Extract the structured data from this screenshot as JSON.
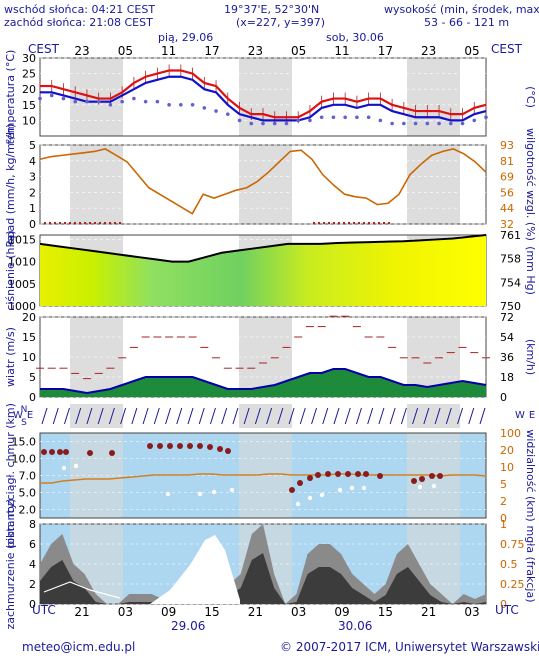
{
  "header": {
    "sunrise": "wschód słońca: 04:21 CEST",
    "sunset": "zachód słońca: 21:08 CEST",
    "coords": "19°37'E, 52°30'N",
    "grid": "(x=227, y=397)",
    "elevation_title": "wysokość (min, środek, max)",
    "elevation_values": "53 - 66 - 121 m",
    "day1": "pią, 29.06",
    "day2": "sob, 30.06",
    "tz_left": "CEST",
    "tz_right": "CEST",
    "top_hours": [
      "23",
      "05",
      "11",
      "17",
      "23",
      "05",
      "11",
      "17",
      "23",
      "05"
    ]
  },
  "footer": {
    "utc_left": "UTC",
    "utc_right": "UTC",
    "bottom_hours": [
      "21",
      "03",
      "09",
      "15",
      "21",
      "03",
      "09",
      "15",
      "21",
      "03"
    ],
    "date1": "29.06",
    "date2": "30.06",
    "email": "meteo@icm.edu.pl",
    "copyright": "© 2007-2017 ICM, Uniwersytet Warszawski"
  },
  "colors": {
    "label": "#1a1a9a",
    "orange": "#cc6600",
    "red": "#dd1111",
    "blue": "#1111cc",
    "panel": "#add6f0",
    "ice": "#f4f4ff"
  },
  "chart_data": [
    {
      "type": "line",
      "panel": "temperature",
      "left_label": "temperatura (°C)",
      "right_label": "(°C)",
      "ylim": [
        5,
        30
      ],
      "yticks": [
        10,
        15,
        20,
        25,
        30
      ],
      "series": [
        {
          "values": [
            21,
            21,
            20,
            19,
            18,
            17,
            17,
            19,
            22,
            24,
            25,
            26,
            26,
            25,
            22,
            21,
            17,
            14,
            12,
            12,
            11,
            11,
            11,
            13,
            16,
            17,
            17,
            16,
            17,
            17,
            15,
            14,
            13,
            13,
            13,
            12,
            12,
            14,
            15
          ]
        },
        {
          "values": [
            19,
            19,
            18,
            17,
            16,
            16,
            16,
            18,
            20,
            22,
            23,
            24,
            24,
            23,
            20,
            19,
            15,
            12,
            11,
            10,
            10,
            10,
            10,
            11,
            14,
            15,
            15,
            14,
            15,
            15,
            13,
            12,
            11,
            11,
            11,
            10,
            10,
            12,
            13
          ]
        },
        {
          "values": [
            17,
            18,
            17,
            16,
            16,
            16,
            15,
            16,
            17,
            16,
            16,
            15,
            15,
            15,
            14,
            13,
            12,
            10,
            9,
            9,
            9,
            9,
            10,
            10,
            11,
            11,
            11,
            11,
            11,
            10,
            9,
            9,
            9,
            9,
            9,
            9,
            9,
            10,
            11
          ]
        }
      ]
    },
    {
      "type": "line",
      "panel": "precipitation",
      "left_label": "opad (mm/h, kg/m²/h)",
      "right_label": "wilgotność wzgl. (%)",
      "right_units": "(%)",
      "ylim": [
        0,
        5
      ],
      "yticks": [
        0,
        1,
        2,
        3,
        4,
        5
      ],
      "right_ticks": [
        "32",
        "44",
        "56",
        "69",
        "81",
        "93"
      ],
      "humidity": [
        82,
        84,
        85,
        86,
        87,
        88,
        90,
        85,
        80,
        70,
        60,
        55,
        50,
        45,
        40,
        55,
        52,
        55,
        58,
        60,
        65,
        72,
        80,
        88,
        89,
        82,
        70,
        62,
        55,
        53,
        52,
        47,
        48,
        55,
        70,
        78,
        85,
        88,
        90,
        86,
        80,
        72
      ]
    },
    {
      "type": "area",
      "panel": "pressure",
      "left_label": "ciśnienie (hPa)",
      "right_label": "(mm Hg)",
      "ylim": [
        1000,
        1016
      ],
      "yticks": [
        1000,
        1005,
        1010,
        1015
      ],
      "right_ticks": [
        "750",
        "754",
        "758",
        "761"
      ],
      "values": [
        1014,
        1013.5,
        1013,
        1012.5,
        1012,
        1011.5,
        1011,
        1010.5,
        1010,
        1010,
        1011,
        1012,
        1012.5,
        1013,
        1013.5,
        1014,
        1014,
        1014,
        1014.2,
        1014.3,
        1014.4,
        1014.5,
        1014.6,
        1014.8,
        1015,
        1015.2,
        1015.6,
        1016
      ]
    },
    {
      "type": "bar",
      "panel": "wind",
      "left_label": "wiatr (m/s)",
      "right_label": "(km/h)",
      "ylim": [
        0,
        20
      ],
      "yticks": [
        0,
        5,
        10,
        15,
        20
      ],
      "right_ticks": [
        "0",
        "18",
        "36",
        "54",
        "72"
      ],
      "speed": [
        2,
        2,
        2,
        1.5,
        1,
        1.5,
        2,
        3,
        4,
        5,
        5,
        5,
        5,
        5,
        4,
        3,
        2,
        2,
        2,
        2.5,
        3,
        4,
        5,
        6,
        6,
        7,
        7,
        6,
        5,
        5,
        4,
        3,
        3,
        2.5,
        3,
        3.5,
        4,
        3.5,
        3
      ]
    },
    {
      "type": "scatter",
      "panel": "cloud-base",
      "left_label": "pion. rozciągł. chmur (km)",
      "right_label": "widzialność (km)",
      "ylim": [
        0,
        15
      ],
      "yticks": [
        "2.0",
        "5.0",
        "7.0",
        "10.0",
        "15.0"
      ],
      "right_ticks": [
        "0",
        "2",
        "5",
        "10",
        "20",
        "100"
      ]
    },
    {
      "type": "area",
      "panel": "cloud-cover",
      "left_label": "zachmurzenie (oktanty)",
      "right_label": "mgła (frakcja)",
      "ylim": [
        0,
        8
      ],
      "yticks": [
        0,
        2,
        4,
        6,
        8
      ],
      "right_ticks": [
        "0",
        "0.25",
        "0.5",
        "0.75",
        "1"
      ],
      "cover": [
        4,
        6,
        7,
        4,
        3,
        1,
        0,
        0,
        1,
        1,
        1,
        0.5,
        1,
        0.5,
        0,
        0,
        1,
        2,
        3,
        7,
        8,
        3,
        0,
        1,
        5,
        6,
        6,
        5,
        3,
        2,
        1,
        2,
        5,
        6,
        4,
        2,
        1,
        0,
        1,
        0.5,
        1
      ]
    }
  ]
}
